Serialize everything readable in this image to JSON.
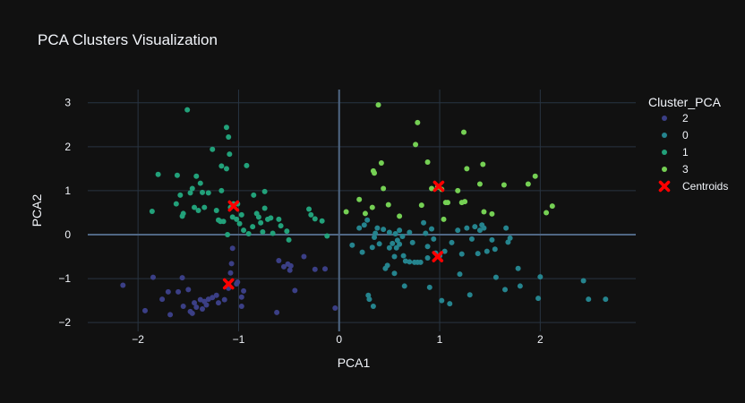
{
  "chart_data": {
    "type": "scatter",
    "title": "PCA Clusters Visualization",
    "xlabel": "PCA1",
    "ylabel": "PCA2",
    "xlim": [
      -2.5,
      2.95
    ],
    "ylim": [
      -2.2,
      3.3
    ],
    "xticks": [
      -2,
      -1,
      0,
      1,
      2
    ],
    "yticks": [
      -2,
      -1,
      0,
      1,
      2,
      3
    ],
    "grid": true,
    "legend_title": "Cluster_PCA",
    "legend_position": "right",
    "series": [
      {
        "name": "2",
        "color": "#3b3f86",
        "points": [
          [
            -2.15,
            -1.15
          ],
          [
            -1.93,
            -1.73
          ],
          [
            -1.85,
            -0.97
          ],
          [
            -1.76,
            -1.47
          ],
          [
            -1.7,
            -1.3
          ],
          [
            -1.68,
            -1.82
          ],
          [
            -1.6,
            -1.3
          ],
          [
            -1.56,
            -0.98
          ],
          [
            -1.55,
            -1.63
          ],
          [
            -1.5,
            -1.25
          ],
          [
            -1.48,
            -1.75
          ],
          [
            -1.46,
            -1.79
          ],
          [
            -1.44,
            -1.55
          ],
          [
            -1.42,
            -1.65
          ],
          [
            -1.38,
            -1.48
          ],
          [
            -1.36,
            -1.69
          ],
          [
            -1.34,
            -1.52
          ],
          [
            -1.32,
            -1.6
          ],
          [
            -1.3,
            -1.47
          ],
          [
            -1.26,
            -1.43
          ],
          [
            -1.22,
            -1.38
          ],
          [
            -1.2,
            -1.55
          ],
          [
            -1.14,
            -1.48
          ],
          [
            -1.1,
            -1.22
          ],
          [
            -1.08,
            -0.87
          ],
          [
            -1.07,
            -0.66
          ],
          [
            -1.06,
            -0.31
          ],
          [
            -1.02,
            -1.12
          ],
          [
            -1.01,
            -1.08
          ],
          [
            -0.97,
            -1.42
          ],
          [
            -0.95,
            -1.28
          ],
          [
            -0.97,
            -1.63
          ],
          [
            -0.62,
            -1.77
          ],
          [
            -0.6,
            -0.59
          ],
          [
            -0.55,
            -0.73
          ],
          [
            -0.51,
            -0.67
          ],
          [
            -0.49,
            -0.81
          ],
          [
            -0.48,
            -0.71
          ],
          [
            -0.44,
            -1.27
          ],
          [
            -0.35,
            -0.5
          ],
          [
            -0.24,
            -0.79
          ],
          [
            -0.14,
            -0.78
          ],
          [
            -0.04,
            -1.67
          ]
        ]
      },
      {
        "name": "0",
        "color": "#25848e",
        "points": [
          [
            0.13,
            -0.24
          ],
          [
            0.2,
            0.15
          ],
          [
            0.23,
            -0.4
          ],
          [
            0.25,
            0.22
          ],
          [
            0.28,
            0.33
          ],
          [
            0.29,
            -1.38
          ],
          [
            0.3,
            -1.47
          ],
          [
            0.33,
            -0.29
          ],
          [
            0.34,
            -1.63
          ],
          [
            0.35,
            -0.06
          ],
          [
            0.36,
            0.03
          ],
          [
            0.38,
            0.15
          ],
          [
            0.4,
            -0.21
          ],
          [
            0.44,
            0.12
          ],
          [
            0.46,
            -0.77
          ],
          [
            0.48,
            -0.7
          ],
          [
            0.5,
            -0.3
          ],
          [
            0.5,
            0.05
          ],
          [
            0.53,
            -0.2
          ],
          [
            0.55,
            -0.5
          ],
          [
            0.55,
            -0.88
          ],
          [
            0.56,
            0.02
          ],
          [
            0.57,
            -0.3
          ],
          [
            0.58,
            -0.13
          ],
          [
            0.6,
            -0.22
          ],
          [
            0.6,
            0.1
          ],
          [
            0.63,
            -0.04
          ],
          [
            0.64,
            -0.48
          ],
          [
            0.65,
            -1.17
          ],
          [
            0.66,
            -0.6
          ],
          [
            0.7,
            0.05
          ],
          [
            0.7,
            -0.62
          ],
          [
            0.73,
            -0.18
          ],
          [
            0.75,
            -0.63
          ],
          [
            0.78,
            -0.63
          ],
          [
            0.81,
            -0.63
          ],
          [
            0.84,
            0.27
          ],
          [
            0.86,
            0.03
          ],
          [
            0.88,
            -0.27
          ],
          [
            0.88,
            -0.53
          ],
          [
            0.9,
            -1.2
          ],
          [
            0.92,
            0.13
          ],
          [
            0.94,
            -0.1
          ],
          [
            0.96,
            -0.42
          ],
          [
            1.0,
            -0.48
          ],
          [
            1.02,
            -1.5
          ],
          [
            1.05,
            -0.38
          ],
          [
            1.1,
            -1.57
          ],
          [
            1.12,
            -0.18
          ],
          [
            1.18,
            0.1
          ],
          [
            1.2,
            -0.9
          ],
          [
            1.22,
            -0.44
          ],
          [
            1.27,
            0.15
          ],
          [
            1.3,
            -1.37
          ],
          [
            1.32,
            -0.1
          ],
          [
            1.35,
            0.18
          ],
          [
            1.38,
            -0.43
          ],
          [
            1.4,
            0.1
          ],
          [
            1.42,
            0.22
          ],
          [
            1.44,
            0.15
          ],
          [
            1.47,
            -0.38
          ],
          [
            1.52,
            -0.12
          ],
          [
            1.55,
            -0.33
          ],
          [
            1.56,
            -0.97
          ],
          [
            1.65,
            -1.25
          ],
          [
            1.66,
            0.15
          ],
          [
            1.68,
            -0.17
          ],
          [
            1.7,
            -0.08
          ],
          [
            1.78,
            -0.77
          ],
          [
            1.8,
            -1.17
          ],
          [
            1.98,
            -1.45
          ],
          [
            2.0,
            -0.96
          ],
          [
            2.43,
            -1.05
          ],
          [
            2.48,
            -1.47
          ],
          [
            2.65,
            -1.47
          ]
        ]
      },
      {
        "name": "1",
        "color": "#22a17a",
        "points": [
          [
            -1.86,
            0.53
          ],
          [
            -1.8,
            1.37
          ],
          [
            -1.62,
            0.7
          ],
          [
            -1.61,
            1.35
          ],
          [
            -1.58,
            0.9
          ],
          [
            -1.56,
            0.42
          ],
          [
            -1.55,
            0.48
          ],
          [
            -1.51,
            2.84
          ],
          [
            -1.48,
            0.95
          ],
          [
            -1.46,
            1.05
          ],
          [
            -1.44,
            0.62
          ],
          [
            -1.42,
            1.33
          ],
          [
            -1.4,
            0.55
          ],
          [
            -1.38,
            1.17
          ],
          [
            -1.36,
            0.96
          ],
          [
            -1.34,
            0.62
          ],
          [
            -1.3,
            0.95
          ],
          [
            -1.26,
            1.94
          ],
          [
            -1.22,
            0.55
          ],
          [
            -1.2,
            0.33
          ],
          [
            -1.18,
            0.3
          ],
          [
            -1.17,
            1.56
          ],
          [
            -1.17,
            1.0
          ],
          [
            -1.15,
            0.3
          ],
          [
            -1.12,
            1.5
          ],
          [
            -1.12,
            2.44
          ],
          [
            -1.11,
            0.0
          ],
          [
            -1.1,
            2.22
          ],
          [
            -1.09,
            1.83
          ],
          [
            -1.08,
            0.62
          ],
          [
            -1.06,
            0.4
          ],
          [
            -1.05,
            0.7
          ],
          [
            -1.02,
            0.35
          ],
          [
            -1.01,
            0.7
          ],
          [
            -0.99,
            0.25
          ],
          [
            -0.97,
            0.45
          ],
          [
            -0.95,
            0.1
          ],
          [
            -0.92,
            1.57
          ],
          [
            -0.9,
            0.02
          ],
          [
            -0.86,
            0.18
          ],
          [
            -0.85,
            0.9
          ],
          [
            -0.82,
            0.48
          ],
          [
            -0.8,
            0.4
          ],
          [
            -0.78,
            0.27
          ],
          [
            -0.76,
            0.06
          ],
          [
            -0.74,
            0.6
          ],
          [
            -0.74,
            0.98
          ],
          [
            -0.71,
            0.35
          ],
          [
            -0.68,
            0.38
          ],
          [
            -0.66,
            0.03
          ],
          [
            -0.6,
            0.35
          ],
          [
            -0.58,
            0.2
          ],
          [
            -0.52,
            0.08
          ],
          [
            -0.5,
            -0.12
          ],
          [
            -0.3,
            0.58
          ],
          [
            -0.28,
            0.45
          ],
          [
            -0.24,
            0.36
          ],
          [
            -0.17,
            0.31
          ],
          [
            -0.12,
            -0.03
          ]
        ]
      },
      {
        "name": "3",
        "color": "#75d054",
        "points": [
          [
            0.07,
            0.52
          ],
          [
            0.2,
            0.8
          ],
          [
            0.26,
            0.48
          ],
          [
            0.33,
            0.62
          ],
          [
            0.34,
            1.45
          ],
          [
            0.35,
            1.4
          ],
          [
            0.39,
            2.95
          ],
          [
            0.42,
            1.63
          ],
          [
            0.44,
            1.05
          ],
          [
            0.49,
            0.68
          ],
          [
            0.6,
            0.42
          ],
          [
            0.76,
            2.05
          ],
          [
            0.78,
            2.55
          ],
          [
            0.82,
            0.67
          ],
          [
            0.88,
            1.65
          ],
          [
            0.92,
            1.05
          ],
          [
            0.98,
            1.08
          ],
          [
            1.02,
            1.03
          ],
          [
            1.04,
            0.35
          ],
          [
            1.06,
            0.73
          ],
          [
            1.08,
            0.73
          ],
          [
            1.18,
            1.0
          ],
          [
            1.22,
            0.73
          ],
          [
            1.24,
            2.33
          ],
          [
            1.25,
            0.75
          ],
          [
            1.27,
            1.5
          ],
          [
            1.4,
            1.15
          ],
          [
            1.43,
            1.6
          ],
          [
            1.44,
            0.52
          ],
          [
            1.52,
            0.47
          ],
          [
            1.64,
            1.13
          ],
          [
            1.88,
            1.15
          ],
          [
            1.95,
            1.33
          ],
          [
            2.06,
            0.5
          ],
          [
            2.12,
            0.65
          ]
        ]
      }
    ],
    "centroids": {
      "name": "Centroids",
      "color": "#ff0000",
      "points": [
        [
          -1.05,
          0.65
        ],
        [
          -1.1,
          -1.12
        ],
        [
          0.99,
          1.1
        ],
        [
          0.98,
          -0.5
        ]
      ]
    }
  }
}
